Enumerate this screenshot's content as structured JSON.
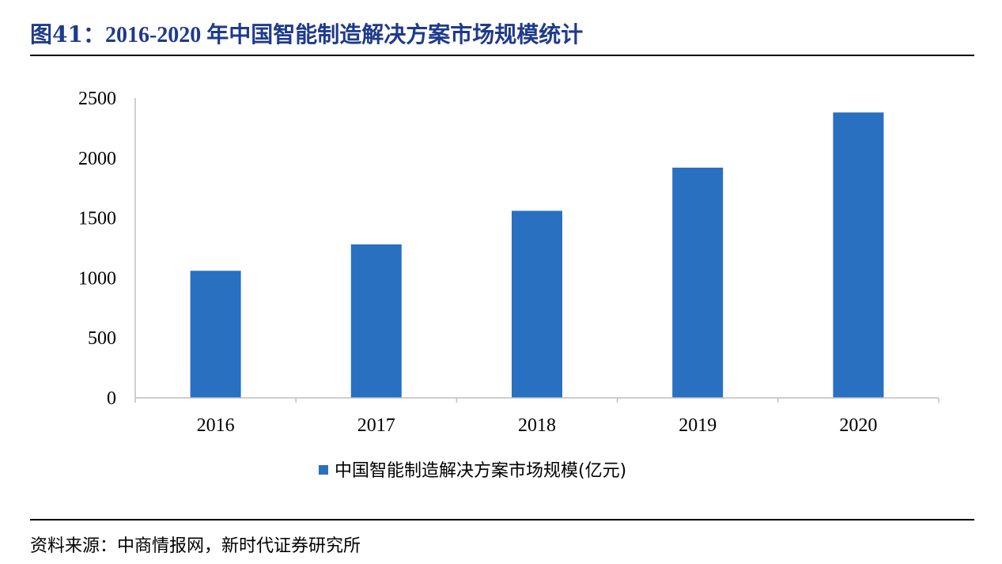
{
  "header": {
    "figure_label": "图41：",
    "title": "2016-2020 年中国智能制造解决方案市场规模统计"
  },
  "footer": {
    "source": "资料来源：中商情报网，新时代证券研究所"
  },
  "chart_data": {
    "type": "bar",
    "categories": [
      "2016",
      "2017",
      "2018",
      "2019",
      "2020"
    ],
    "series": [
      {
        "name": "中国智能制造解决方案市场规模(亿元)",
        "values": [
          1060,
          1280,
          1560,
          1920,
          2380
        ],
        "color": "#2970C0"
      }
    ],
    "ylim": [
      0,
      2500
    ],
    "yticks": [
      "0",
      "500",
      "1000",
      "1500",
      "2000",
      "2500"
    ],
    "grid": false,
    "legend": "bottom-center"
  }
}
